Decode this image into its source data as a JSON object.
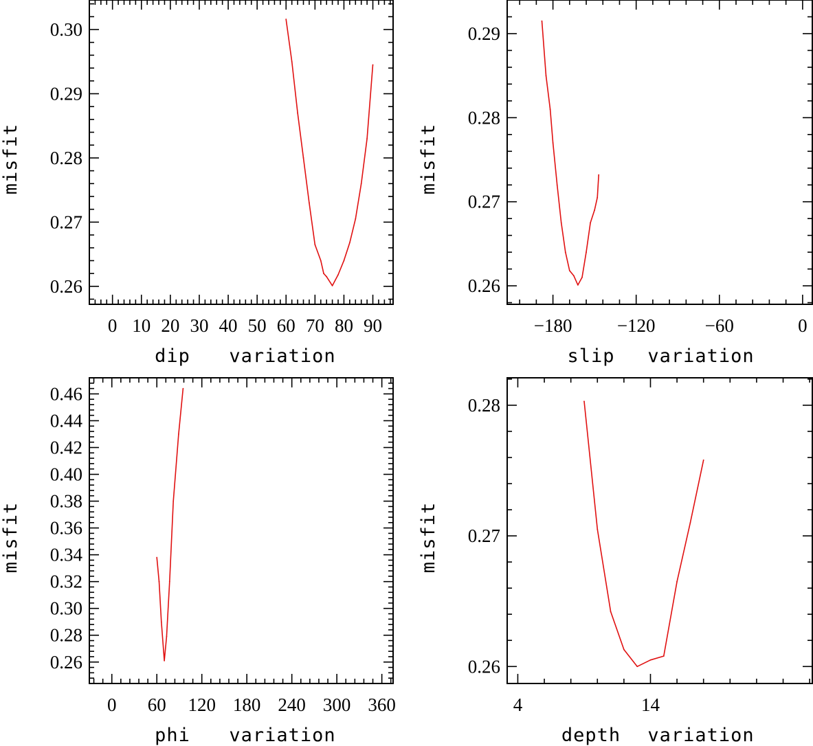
{
  "colors": {
    "line": "#e01010",
    "axis": "#000000",
    "background": "#ffffff"
  },
  "chart_data": [
    {
      "type": "line",
      "title": "",
      "xlabel_left": "dip",
      "xlabel_right": "variation",
      "ylabel": "misfit",
      "xlim": [
        -8,
        97
      ],
      "ylim": [
        0.2572,
        0.3046
      ],
      "xticks": [
        0,
        10,
        20,
        30,
        40,
        50,
        60,
        70,
        80,
        90
      ],
      "xtick_labels": [
        "0",
        "10",
        "20",
        "30",
        "40",
        "50",
        "60",
        "70",
        "80",
        "90"
      ],
      "yticks": [
        0.26,
        0.27,
        0.28,
        0.29,
        0.3
      ],
      "ytick_labels": [
        "0.26",
        "0.27",
        "0.28",
        "0.29",
        "0.30"
      ],
      "x": [
        60,
        62,
        64,
        66,
        68,
        70,
        72,
        73,
        74,
        76,
        78,
        80,
        82,
        84,
        86,
        88,
        90
      ],
      "values": [
        0.3016,
        0.295,
        0.287,
        0.28,
        0.273,
        0.2665,
        0.264,
        0.262,
        0.2615,
        0.2601,
        0.2618,
        0.264,
        0.2668,
        0.2705,
        0.276,
        0.283,
        0.2945
      ]
    },
    {
      "type": "line",
      "title": "",
      "xlabel_left": "slip",
      "xlabel_right": "variation",
      "ylabel": "misfit",
      "xlim": [
        -213,
        7
      ],
      "ylim": [
        0.2578,
        0.294
      ],
      "xticks": [
        -180,
        -120,
        -60,
        0
      ],
      "xtick_labels": [
        "−180",
        "−120",
        "−60",
        "0"
      ],
      "yticks": [
        0.26,
        0.27,
        0.28,
        0.29
      ],
      "ytick_labels": [
        "0.26",
        "0.27",
        "0.28",
        "0.29"
      ],
      "x": [
        -188,
        -185,
        -182,
        -180,
        -177,
        -174,
        -171,
        -168,
        -165,
        -162,
        -159,
        -156,
        -153,
        -150,
        -148,
        -147
      ],
      "values": [
        0.2915,
        0.285,
        0.281,
        0.277,
        0.272,
        0.2675,
        0.264,
        0.2618,
        0.2612,
        0.2601,
        0.261,
        0.264,
        0.2675,
        0.269,
        0.2705,
        0.2732
      ]
    },
    {
      "type": "line",
      "title": "",
      "xlabel_left": "phi",
      "xlabel_right": "variation",
      "ylabel": "misfit",
      "xlim": [
        -30,
        375
      ],
      "ylim": [
        0.244,
        0.472
      ],
      "xticks": [
        0,
        60,
        120,
        180,
        240,
        300,
        360
      ],
      "xtick_labels": [
        "0",
        "60",
        "120",
        "180",
        "240",
        "300",
        "360"
      ],
      "yticks": [
        0.26,
        0.28,
        0.3,
        0.32,
        0.34,
        0.36,
        0.38,
        0.4,
        0.42,
        0.44,
        0.46
      ],
      "ytick_labels": [
        "0.26",
        "0.28",
        "0.30",
        "0.32",
        "0.34",
        "0.36",
        "0.38",
        "0.40",
        "0.42",
        "0.44",
        "0.46"
      ],
      "x": [
        60,
        63,
        66,
        70,
        73,
        77,
        82,
        89,
        95
      ],
      "values": [
        0.338,
        0.32,
        0.29,
        0.261,
        0.279,
        0.32,
        0.38,
        0.43,
        0.464
      ]
    },
    {
      "type": "line",
      "title": "",
      "xlabel_left": "depth",
      "xlabel_right": "variation",
      "ylabel": "misfit",
      "xlim": [
        3.2,
        26.2
      ],
      "ylim": [
        0.2587,
        0.2821
      ],
      "xticks": [
        4,
        14
      ],
      "xtick_labels": [
        "4",
        "14"
      ],
      "yticks": [
        0.26,
        0.27,
        0.28
      ],
      "ytick_labels": [
        "0.26",
        "0.27",
        "0.28"
      ],
      "x": [
        9,
        10,
        11,
        12,
        13,
        14,
        15,
        16,
        17,
        18
      ],
      "values": [
        0.2803,
        0.2705,
        0.2642,
        0.2613,
        0.26,
        0.2605,
        0.2608,
        0.2665,
        0.271,
        0.2758
      ]
    }
  ]
}
